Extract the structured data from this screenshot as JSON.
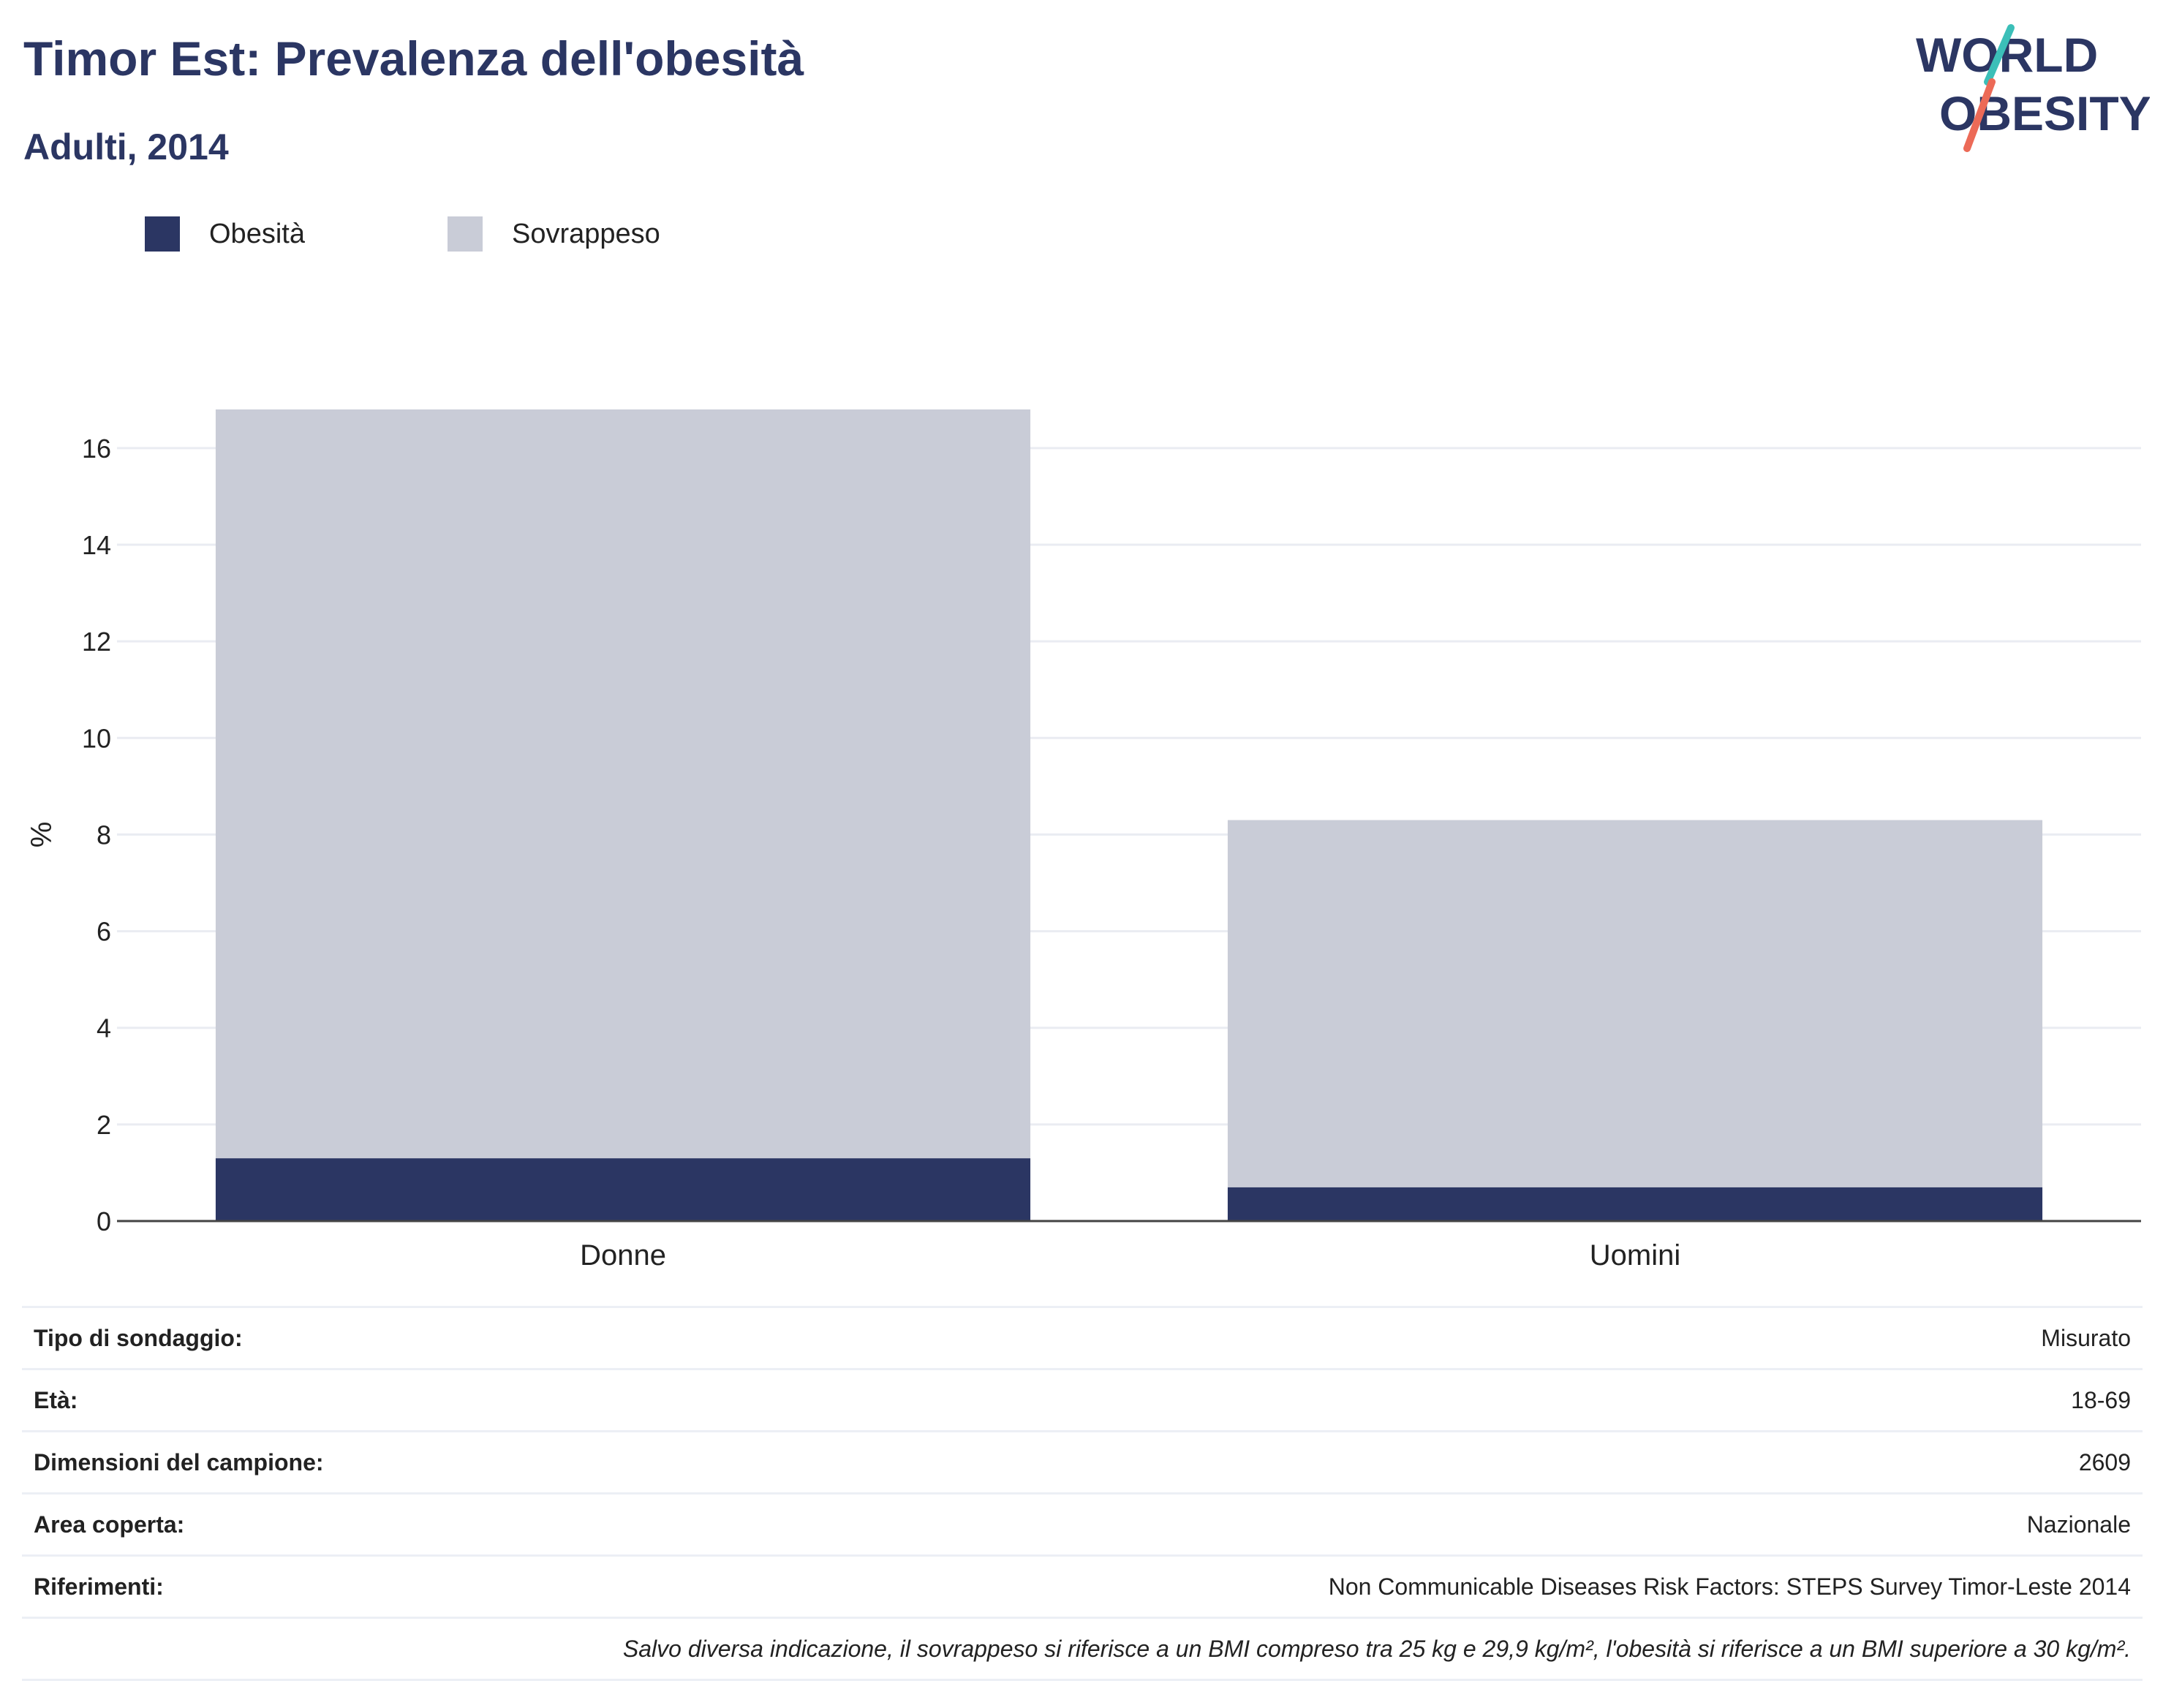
{
  "header": {
    "title": "Timor Est: Prevalenza dell'obesità",
    "subtitle": "Adulti, 2014"
  },
  "logo": {
    "line1": "WORLD",
    "line2": "OBESITY"
  },
  "colors": {
    "obesity": "#2b3663",
    "overweight": "#c9ccd7",
    "title": "#2b3663",
    "logo_teal": "#3bbfb8",
    "logo_red": "#ec6a57"
  },
  "chart_data": {
    "type": "bar",
    "stacked": true,
    "categories": [
      "Donne",
      "Uomini"
    ],
    "series": [
      {
        "name": "Obesità",
        "values": [
          1.3,
          0.7
        ]
      },
      {
        "name": "Sovrappeso",
        "values": [
          15.5,
          7.6
        ]
      }
    ],
    "ylabel": "%",
    "ylim": [
      0,
      16.8
    ],
    "yticks": [
      0,
      2,
      4,
      6,
      8,
      10,
      12,
      14,
      16
    ],
    "grid": true,
    "legend": "top-left"
  },
  "info": {
    "rows": [
      {
        "key": "Tipo di sondaggio:",
        "value": "Misurato"
      },
      {
        "key": "Età:",
        "value": "18-69"
      },
      {
        "key": "Dimensioni del campione:",
        "value": "2609"
      },
      {
        "key": "Area coperta:",
        "value": "Nazionale"
      },
      {
        "key": "Riferimenti:",
        "value": "Non Communicable Diseases Risk Factors: STEPS Survey Timor-Leste 2014"
      }
    ],
    "note": "Salvo diversa indicazione, il sovrappeso si riferisce a un BMI compreso tra 25 kg e 29,9 kg/m², l'obesità si riferisce a un BMI superiore a 30 kg/m²."
  }
}
